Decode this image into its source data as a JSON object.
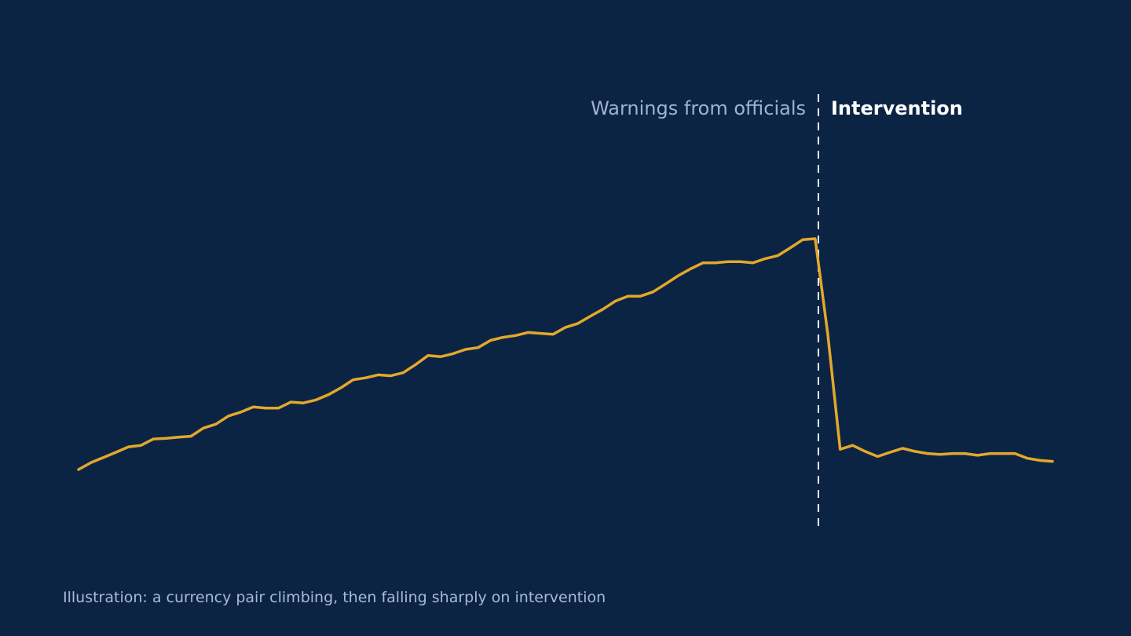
{
  "chart_data": {
    "type": "line",
    "xlabel": "",
    "ylabel": "",
    "ylim": [
      0,
      100
    ],
    "grid": false,
    "axes_visible": false,
    "colors": {
      "background": "#0c2444",
      "line": "#e3a82b",
      "divider": "#ffffff"
    },
    "series": [
      {
        "values": [
          10.0,
          12.3,
          14.0,
          15.7,
          17.5,
          18.0,
          20.1,
          20.3,
          20.7,
          21.0,
          23.7,
          25.0,
          27.7,
          29.0,
          30.7,
          30.3,
          30.3,
          32.3,
          32.0,
          33.0,
          34.7,
          37.0,
          39.7,
          40.3,
          41.3,
          41.0,
          42.0,
          44.7,
          47.7,
          47.3,
          48.3,
          49.7,
          50.3,
          52.7,
          53.7,
          54.3,
          55.3,
          55.0,
          54.7,
          57.0,
          58.3,
          60.7,
          63.0,
          65.7,
          67.3,
          67.3,
          68.7,
          71.3,
          74.0,
          76.3,
          78.3,
          78.3,
          78.7,
          78.7,
          78.3,
          79.7,
          80.7,
          83.3,
          86.0,
          86.3,
          55.0,
          16.7,
          18.0,
          16.0,
          14.3,
          15.7,
          17.0,
          16.0,
          15.3,
          15.0,
          15.3,
          15.3,
          14.7,
          15.3,
          15.3,
          15.3,
          13.7,
          13.0,
          12.7
        ]
      }
    ],
    "intervention_index": 60
  },
  "annotations": {
    "left_label": "Warnings from officials",
    "right_label": "Intervention"
  },
  "caption": "Illustration: a currency pair climbing, then falling sharply on intervention"
}
